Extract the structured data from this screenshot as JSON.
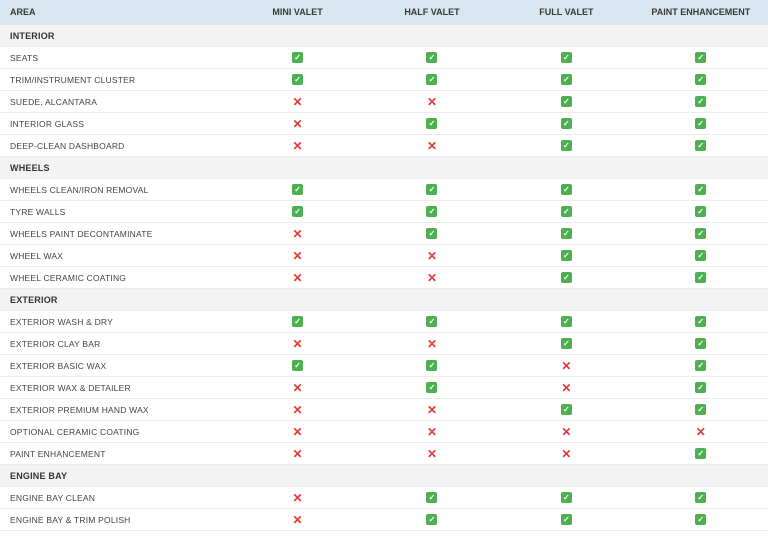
{
  "colors": {
    "header_bg": "#d8e6ef",
    "section_bg": "#f3f3f3",
    "border": "#ececec",
    "check_bg": "#4caf50",
    "check_fg": "#ffffff",
    "cross_fg": "#e03a3a",
    "text": "#333333"
  },
  "icons": {
    "check_glyph": "✓",
    "cross_glyph": "✕"
  },
  "table": {
    "columns": [
      "AREA",
      "MINI VALET",
      "HALF VALET",
      "FULL VALET",
      "PAINT ENHANCEMENT"
    ],
    "sections": [
      {
        "title": "INTERIOR",
        "rows": [
          {
            "label": "SEATS",
            "values": [
              true,
              true,
              true,
              true
            ]
          },
          {
            "label": "TRIM/INSTRUMENT CLUSTER",
            "values": [
              true,
              true,
              true,
              true
            ]
          },
          {
            "label": "SUEDE, ALCANTARA",
            "values": [
              false,
              false,
              true,
              true
            ]
          },
          {
            "label": "INTERIOR GLASS",
            "values": [
              false,
              true,
              true,
              true
            ]
          },
          {
            "label": "DEEP-CLEAN DASHBOARD",
            "values": [
              false,
              false,
              true,
              true
            ]
          }
        ]
      },
      {
        "title": "WHEELS",
        "rows": [
          {
            "label": "WHEELS CLEAN/IRON REMOVAL",
            "values": [
              true,
              true,
              true,
              true
            ]
          },
          {
            "label": "TYRE WALLS",
            "values": [
              true,
              true,
              true,
              true
            ]
          },
          {
            "label": "WHEELS PAINT DECONTAMINATE",
            "values": [
              false,
              true,
              true,
              true
            ]
          },
          {
            "label": "WHEEL WAX",
            "values": [
              false,
              false,
              true,
              true
            ]
          },
          {
            "label": "WHEEL CERAMIC COATING",
            "values": [
              false,
              false,
              true,
              true
            ]
          }
        ]
      },
      {
        "title": "EXTERIOR",
        "rows": [
          {
            "label": "EXTERIOR WASH & DRY",
            "values": [
              true,
              true,
              true,
              true
            ]
          },
          {
            "label": "EXTERIOR CLAY BAR",
            "values": [
              false,
              false,
              true,
              true
            ]
          },
          {
            "label": "EXTERIOR BASIC WAX",
            "values": [
              true,
              true,
              false,
              true
            ]
          },
          {
            "label": "EXTERIOR WAX & DETAILER",
            "values": [
              false,
              true,
              false,
              true
            ]
          },
          {
            "label": "EXTERIOR PREMIUM HAND WAX",
            "values": [
              false,
              false,
              true,
              true
            ]
          },
          {
            "label": "OPTIONAL CERAMIC COATING",
            "values": [
              false,
              false,
              false,
              false
            ]
          },
          {
            "label": "PAINT ENHANCEMENT",
            "values": [
              false,
              false,
              false,
              true
            ]
          }
        ]
      },
      {
        "title": "ENGINE BAY",
        "rows": [
          {
            "label": "ENGINE BAY CLEAN",
            "values": [
              false,
              true,
              true,
              true
            ]
          },
          {
            "label": "ENGINE BAY & TRIM POLISH",
            "values": [
              false,
              true,
              true,
              true
            ]
          }
        ]
      }
    ]
  }
}
